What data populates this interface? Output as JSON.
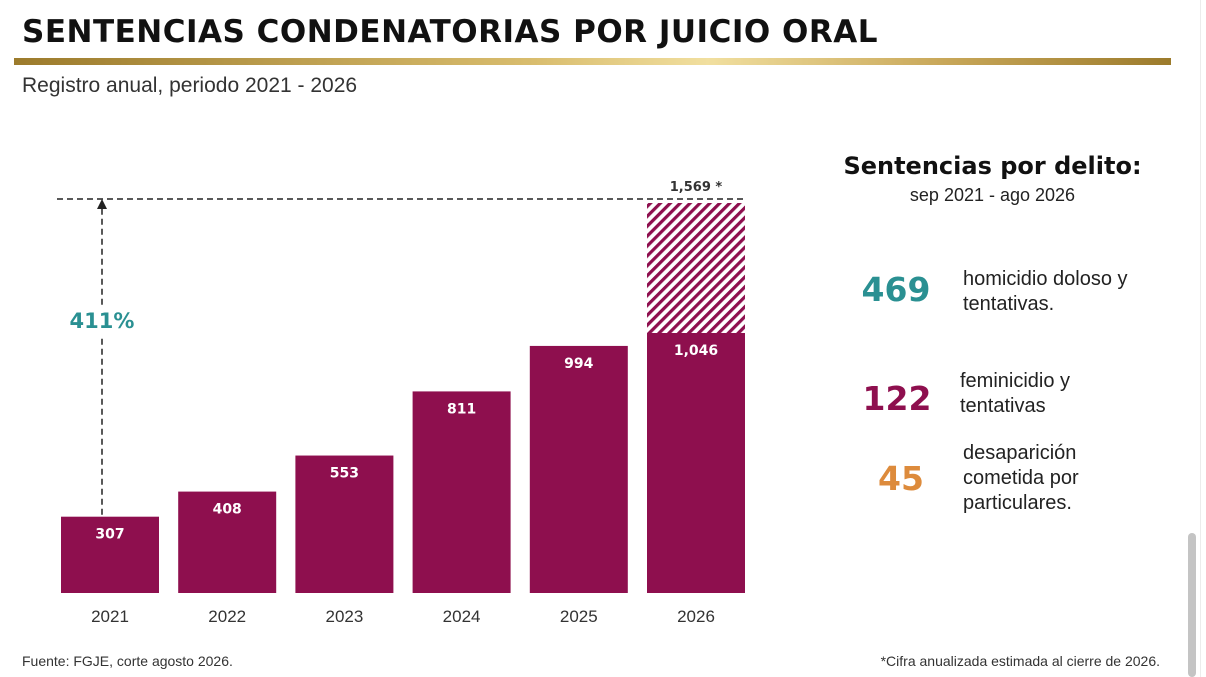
{
  "title": "SENTENCIAS CONDENATORIAS POR JUICIO ORAL",
  "subtitle": "Registro anual, periodo 2021 - 2026",
  "colors": {
    "bar": "#8e0f4e",
    "hatch": "#8e0f4e",
    "teal": "#2a9092",
    "wine": "#8e0f4e",
    "orange": "#dd8b3c"
  },
  "chart_data": {
    "type": "bar",
    "categories": [
      "2021",
      "2022",
      "2023",
      "2024",
      "2025",
      "2026"
    ],
    "values": [
      307,
      408,
      553,
      811,
      994,
      1046
    ],
    "value_labels": [
      "307",
      "408",
      "553",
      "811",
      "994",
      "1,046"
    ],
    "projection": {
      "category": "2026",
      "value": 1569,
      "label": "1,569 *",
      "style": "hatched"
    },
    "growth_annotation": {
      "label": "411%",
      "from": 307,
      "to": 1569
    },
    "ylim": [
      0,
      1569
    ],
    "grid": false,
    "legend": "none"
  },
  "sidebar": {
    "title": "Sentencias por delito:",
    "subtitle": "sep 2021 - ago 2026",
    "stats": [
      {
        "value": "469",
        "color_key": "teal",
        "lines": [
          "homicidio doloso y",
          "tentativas."
        ]
      },
      {
        "value": "122",
        "color_key": "wine",
        "lines": [
          "feminicidio y",
          "tentativas"
        ]
      },
      {
        "value": "45",
        "color_key": "orange",
        "lines": [
          "desaparición",
          "cometida por",
          "particulares."
        ]
      }
    ]
  },
  "footer": {
    "source": "Fuente: FGJE, corte agosto 2026.",
    "note": "*Cifra anualizada estimada al cierre de 2026."
  }
}
